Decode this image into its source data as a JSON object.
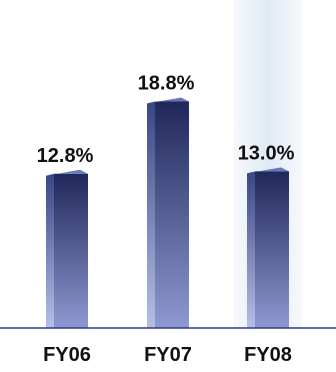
{
  "chart_data": {
    "type": "bar",
    "categories": [
      "FY06",
      "FY07",
      "FY08"
    ],
    "values": [
      12.8,
      18.8,
      13.0
    ],
    "value_labels": [
      "12.8%",
      "18.8%",
      "13.0%"
    ],
    "title": "",
    "xlabel": "",
    "ylabel": "",
    "ylim": [
      0,
      20
    ],
    "grid": false,
    "highlighted_category": "FY08",
    "colors": {
      "bar_front_top": "#20275a",
      "bar_front_bottom": "#8d99d0",
      "bar_side_top": "#3a4585",
      "bar_side_bottom": "#b6bfe6",
      "bar_top_face": "#6a78b6",
      "axis_line": "#2b3a8c",
      "highlight": "#e2edf5"
    }
  }
}
